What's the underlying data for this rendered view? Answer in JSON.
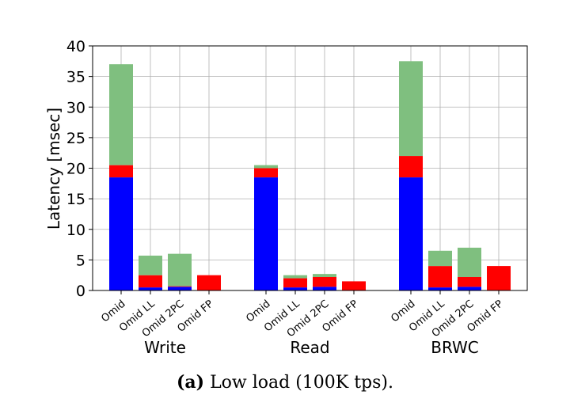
{
  "chart_data": {
    "type": "bar",
    "stacked": true,
    "ylabel": "Latency [msec]",
    "ylim": [
      0,
      40
    ],
    "yticks": [
      0,
      5,
      10,
      15,
      20,
      25,
      30,
      35,
      40
    ],
    "grid": true,
    "groups": [
      {
        "label": "Write",
        "bars": [
          {
            "label": "Omid",
            "segments": [
              18.5,
              2.0,
              16.5
            ]
          },
          {
            "label": "Omid LL",
            "segments": [
              0.5,
              2.0,
              3.2
            ]
          },
          {
            "label": "Omid 2PC",
            "segments": [
              0.6,
              0.1,
              5.3
            ]
          },
          {
            "label": "Omid FP",
            "segments": [
              0.0,
              2.5,
              0.0
            ]
          }
        ]
      },
      {
        "label": "Read",
        "bars": [
          {
            "label": "Omid",
            "segments": [
              18.5,
              1.5,
              0.5
            ]
          },
          {
            "label": "Omid LL",
            "segments": [
              0.5,
              1.5,
              0.5
            ]
          },
          {
            "label": "Omid 2PC",
            "segments": [
              0.6,
              1.6,
              0.5
            ]
          },
          {
            "label": "Omid FP",
            "segments": [
              0.0,
              1.5,
              0.0
            ]
          }
        ]
      },
      {
        "label": "BRWC",
        "bars": [
          {
            "label": "Omid",
            "segments": [
              18.5,
              3.5,
              15.5
            ]
          },
          {
            "label": "Omid LL",
            "segments": [
              0.5,
              3.5,
              2.5
            ]
          },
          {
            "label": "Omid 2PC",
            "segments": [
              0.6,
              1.6,
              4.8
            ]
          },
          {
            "label": "Omid FP",
            "segments": [
              0.0,
              4.0,
              0.0
            ]
          }
        ]
      }
    ],
    "segment_colors": [
      "#0000ff",
      "#ff0000",
      "#7fbf7f"
    ]
  },
  "caption": {
    "label": "(a)",
    "text": "Low load (100K tps)."
  }
}
